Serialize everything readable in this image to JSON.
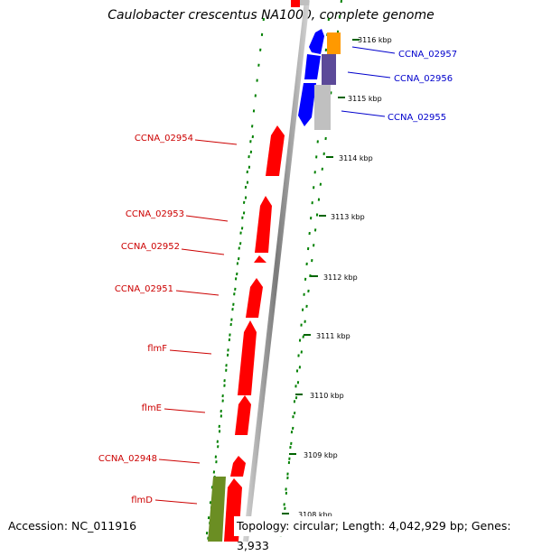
{
  "map_title": "Caulobacter crescentus NA1000, complete genome",
  "accession_text": "Accession: NC_011916",
  "stats_text": "Topology: circular; Length: 4,042,929 bp; Genes: 3,933",
  "colors": {
    "forward_gene": "#ff0000",
    "reverse_gene": "#0000ff",
    "left_gene_labels": "#cc0000",
    "right_gene_labels": "#0000cc",
    "backbone": "#999999",
    "dotted_tracks": "#008000",
    "orange_feature": "#ff9900",
    "purple_feature": "#5c4a99",
    "grey_feature": "#c0c0c0",
    "olive_feature": "#6b8e23"
  },
  "position_ticks": [
    "3116 kbp",
    "3115 kbp",
    "3114 kbp",
    "3113 kbp",
    "3112 kbp",
    "3111 kbp",
    "3110 kbp",
    "3109 kbp",
    "3108 kbp"
  ],
  "left_genes": [
    "CCNA_02954",
    "CCNA_02953",
    "CCNA_02952",
    "CCNA_02951",
    "flmF",
    "flmE",
    "CCNA_02948",
    "flmD"
  ],
  "right_genes": [
    "CCNA_02957",
    "CCNA_02956",
    "CCNA_02955"
  ]
}
